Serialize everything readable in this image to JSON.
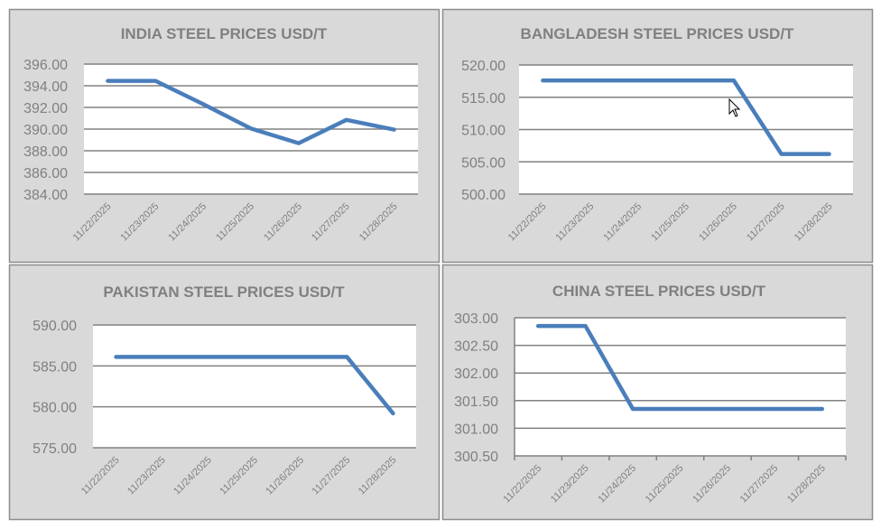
{
  "colors": {
    "line": "#4a7ebb",
    "panel_bg": "#d9d9d9",
    "plot_bg": "#ffffff",
    "grid": "#808080",
    "text": "#808080"
  },
  "chart_data": [
    {
      "type": "line",
      "title": "INDIA STEEL PRICES USD/T",
      "categories": [
        "11/22/2025",
        "11/23/2025",
        "11/24/2025",
        "11/25/2025",
        "11/26/2025",
        "11/27/2025",
        "11/28/2025"
      ],
      "series": [
        {
          "name": "India",
          "values": [
            394.45,
            394.45,
            392.3,
            390.05,
            388.7,
            390.85,
            389.95
          ]
        }
      ],
      "ylim": [
        384,
        396
      ],
      "yticks": [
        "384.00",
        "386.00",
        "388.00",
        "390.00",
        "392.00",
        "394.00",
        "396.00"
      ],
      "grid": true
    },
    {
      "type": "line",
      "title": "BANGLADESH STEEL PRICES USD/T",
      "categories": [
        "11/22/2025",
        "11/23/2025",
        "11/24/2025",
        "11/25/2025",
        "11/26/2025",
        "11/27/2025",
        "11/28/2025"
      ],
      "series": [
        {
          "name": "Bangladesh",
          "values": [
            517.6,
            517.6,
            517.6,
            517.6,
            517.6,
            506.2,
            506.2
          ]
        }
      ],
      "ylim": [
        500,
        520
      ],
      "yticks": [
        "500.00",
        "505.00",
        "510.00",
        "515.00",
        "520.00"
      ],
      "grid": true
    },
    {
      "type": "line",
      "title": "PAKISTAN STEEL PRICES USD/T",
      "categories": [
        "11/22/2025",
        "11/23/2025",
        "11/24/2025",
        "11/25/2025",
        "11/26/2025",
        "11/27/2025",
        "11/28/2025"
      ],
      "series": [
        {
          "name": "Pakistan",
          "values": [
            586.1,
            586.1,
            586.1,
            586.1,
            586.1,
            586.1,
            579.2
          ]
        }
      ],
      "ylim": [
        575,
        590
      ],
      "yticks": [
        "575.00",
        "580.00",
        "585.00",
        "590.00"
      ],
      "grid": true
    },
    {
      "type": "line",
      "title": "CHINA STEEL PRICES USD/T",
      "categories": [
        "11/22/2025",
        "11/23/2025",
        "11/24/2025",
        "11/25/2025",
        "11/26/2025",
        "11/27/2025",
        "11/28/2025"
      ],
      "series": [
        {
          "name": "China",
          "values": [
            302.85,
            302.85,
            301.35,
            301.35,
            301.35,
            301.35,
            301.35
          ]
        }
      ],
      "ylim": [
        300.5,
        303
      ],
      "yticks": [
        "300.50",
        "301.00",
        "301.50",
        "302.00",
        "302.50",
        "303.00"
      ],
      "grid": true
    }
  ]
}
